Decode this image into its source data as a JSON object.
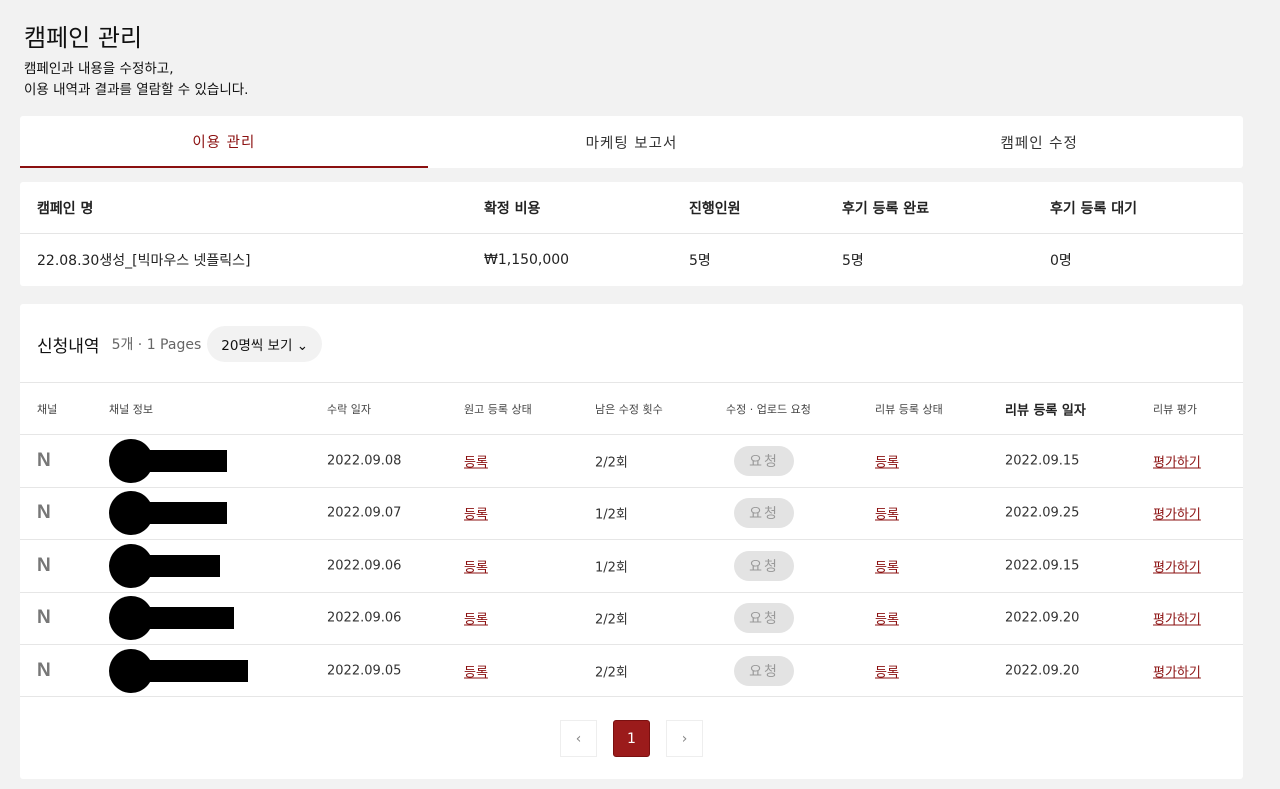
{
  "header": {
    "title": "캠페인 관리",
    "desc1": "캠페인과 내용을 수정하고,",
    "desc2": "이용 내역과 결과를 열람할 수 있습니다."
  },
  "tabs": [
    {
      "label": "이용 관리",
      "active": true
    },
    {
      "label": "마케팅 보고서"
    },
    {
      "label": "캠페인 수정"
    }
  ],
  "summary": {
    "headers": [
      "캠페인 명",
      "확정 비용",
      "진행인원",
      "후기 등록 완료",
      "후기 등록 대기"
    ],
    "values": [
      "22.08.30생성_[빅마우스 넷플릭스]",
      "₩1,150,000",
      "5명",
      "5명",
      "0명"
    ]
  },
  "list": {
    "title": "신청내역",
    "count": "5개 · 1 Pages",
    "page_size": "20명씩 보기",
    "columns": [
      "채널",
      "채널 정보",
      "수락 일자",
      "원고 등록 상태",
      "남은 수정 횟수",
      "수정 · 업로드 요청",
      "리뷰 등록 상태",
      "리뷰 등록 일자",
      "리뷰 평가"
    ],
    "rows": [
      {
        "channel": "N",
        "accepted": "2022.09.08",
        "draft": "등록",
        "remaining": "2/2회",
        "request": "요청",
        "review": "등록",
        "review_date": "2022.09.15",
        "rate": "평가하기"
      },
      {
        "channel": "N",
        "accepted": "2022.09.07",
        "draft": "등록",
        "remaining": "1/2회",
        "request": "요청",
        "review": "등록",
        "review_date": "2022.09.25",
        "rate": "평가하기"
      },
      {
        "channel": "N",
        "accepted": "2022.09.06",
        "draft": "등록",
        "remaining": "1/2회",
        "request": "요청",
        "review": "등록",
        "review_date": "2022.09.15",
        "rate": "평가하기"
      },
      {
        "channel": "N",
        "accepted": "2022.09.06",
        "draft": "등록",
        "remaining": "2/2회",
        "request": "요청",
        "review": "등록",
        "review_date": "2022.09.20",
        "rate": "평가하기"
      },
      {
        "channel": "N",
        "accepted": "2022.09.05",
        "draft": "등록",
        "remaining": "2/2회",
        "request": "요청",
        "review": "등록",
        "review_date": "2022.09.20",
        "rate": "평가하기"
      }
    ]
  },
  "pagination": {
    "current": "1",
    "prev_icon": "chevron-left-icon",
    "next_icon": "chevron-right-icon"
  },
  "colors": {
    "accent": "#8b1010",
    "background": "#f2f2f2"
  }
}
